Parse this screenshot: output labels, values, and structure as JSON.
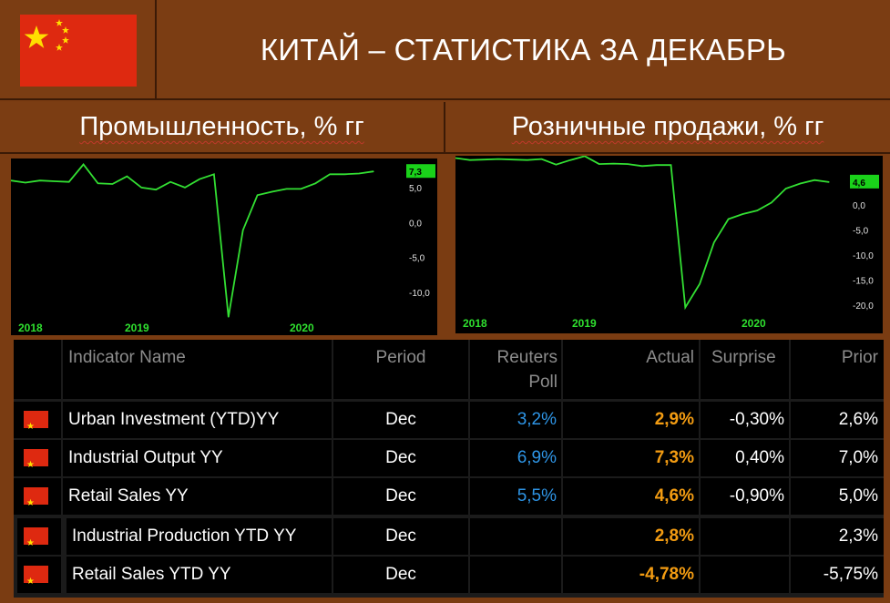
{
  "title": "КИТАЙ – СТАТИСТИКА ЗА ДЕКАБРЬ",
  "colors": {
    "background": "#7b3d13",
    "line": "#33e033",
    "tag": "#1ad21a",
    "blue": "#2e95e6",
    "orange": "#f39c12"
  },
  "charts": {
    "left": {
      "title": "Промышленность, % гг"
    },
    "right": {
      "title": "Розничные продажи, % гг"
    }
  },
  "chart_data": [
    {
      "type": "line",
      "title": "Промышленность, % гг",
      "x_ticks": [
        "2018",
        "2019",
        "2020"
      ],
      "y_ticks": [
        "5,0",
        "0,0",
        "-5,0",
        "-10,0"
      ],
      "last_value_label": "7,3",
      "ylim": [
        -13.5,
        8.5
      ],
      "values": [
        6.0,
        5.7,
        6.0,
        5.9,
        5.8,
        8.3,
        5.6,
        5.5,
        6.6,
        5.0,
        4.7,
        5.8,
        5.0,
        6.2,
        6.9,
        -13.5,
        -1.1,
        3.9,
        4.4,
        4.8,
        4.8,
        5.6,
        6.9,
        6.9,
        7.0,
        7.3
      ],
      "series": [
        {
          "name": "",
          "values": [
            6.0,
            5.7,
            6.0,
            5.9,
            5.8,
            8.3,
            5.6,
            5.5,
            6.6,
            5.0,
            4.7,
            5.8,
            5.0,
            6.2,
            6.9,
            -13.5,
            -1.1,
            3.9,
            4.4,
            4.8,
            4.8,
            5.6,
            6.9,
            6.9,
            7.0,
            7.3
          ]
        }
      ],
      "grid": false
    },
    {
      "type": "line",
      "title": "Розничные продажи, % гг",
      "x_ticks": [
        "2018",
        "2019",
        "2020"
      ],
      "y_ticks": [
        "0,0",
        "-5,0",
        "-10,0",
        "-15,0",
        "-20,0"
      ],
      "last_value_label": "4,6",
      "ylim": [
        -21.5,
        9.5
      ],
      "values": [
        9.4,
        9.0,
        9.1,
        9.2,
        9.1,
        9.0,
        9.2,
        8.1,
        9.0,
        9.8,
        8.2,
        8.3,
        8.2,
        7.8,
        8.0,
        8.0,
        -20.5,
        -15.8,
        -7.5,
        -2.8,
        -1.8,
        -1.1,
        0.5,
        3.3,
        4.3,
        5.0,
        4.6
      ],
      "series": [
        {
          "name": "",
          "values": [
            9.4,
            9.0,
            9.1,
            9.2,
            9.1,
            9.0,
            9.2,
            8.1,
            9.0,
            9.8,
            8.2,
            8.3,
            8.2,
            7.8,
            8.0,
            8.0,
            -20.5,
            -15.8,
            -7.5,
            -2.8,
            -1.8,
            -1.1,
            0.5,
            3.3,
            4.3,
            5.0,
            4.6
          ]
        }
      ],
      "grid": false
    },
    {
      "type": "table",
      "columns": [
        "Indicator Name",
        "Period",
        "Reuters Poll",
        "Actual",
        "Surprise",
        "Prior"
      ],
      "rows": [
        {
          "name": "Urban Investment (YTD)YY",
          "period": "Dec",
          "poll": "3,2%",
          "actual": "2,9%",
          "surprise": "-0,30%",
          "prior": "2,6%"
        },
        {
          "name": "Industrial Output YY",
          "period": "Dec",
          "poll": "6,9%",
          "actual": "7,3%",
          "surprise": "0,40%",
          "prior": "7,0%"
        },
        {
          "name": "Retail Sales YY",
          "period": "Dec",
          "poll": "5,5%",
          "actual": "4,6%",
          "surprise": "-0,90%",
          "prior": "5,0%"
        },
        {
          "name": "Industrial Production YTD YY",
          "period": "Dec",
          "poll": "",
          "actual": "2,8%",
          "surprise": "",
          "prior": "2,3%"
        },
        {
          "name": "Retail Sales YTD YY",
          "period": "Dec",
          "poll": "",
          "actual": "-4,78%",
          "surprise": "",
          "prior": "-5,75%"
        }
      ]
    }
  ],
  "table": {
    "headers": {
      "name": "Indicator Name",
      "period": "Period",
      "poll_line1": "Reuters",
      "poll_line2": "Poll",
      "actual": "Actual",
      "surprise": "Surprise",
      "prior": "Prior"
    },
    "rows": [
      {
        "name": "Urban Investment (YTD)YY",
        "period": "Dec",
        "poll": "3,2%",
        "actual": "2,9%",
        "surprise": "-0,30%",
        "prior": "2,6%"
      },
      {
        "name": "Industrial Output YY",
        "period": "Dec",
        "poll": "6,9%",
        "actual": "7,3%",
        "surprise": "0,40%",
        "prior": "7,0%"
      },
      {
        "name": "Retail Sales YY",
        "period": "Dec",
        "poll": "5,5%",
        "actual": "4,6%",
        "surprise": "-0,90%",
        "prior": "5,0%"
      },
      {
        "name": "Industrial Production YTD YY",
        "period": "Dec",
        "poll": "",
        "actual": "2,8%",
        "surprise": "",
        "prior": "2,3%"
      },
      {
        "name": "Retail Sales YTD YY",
        "period": "Dec",
        "poll": "",
        "actual": "-4,78%",
        "surprise": "",
        "prior": "-5,75%"
      }
    ]
  }
}
